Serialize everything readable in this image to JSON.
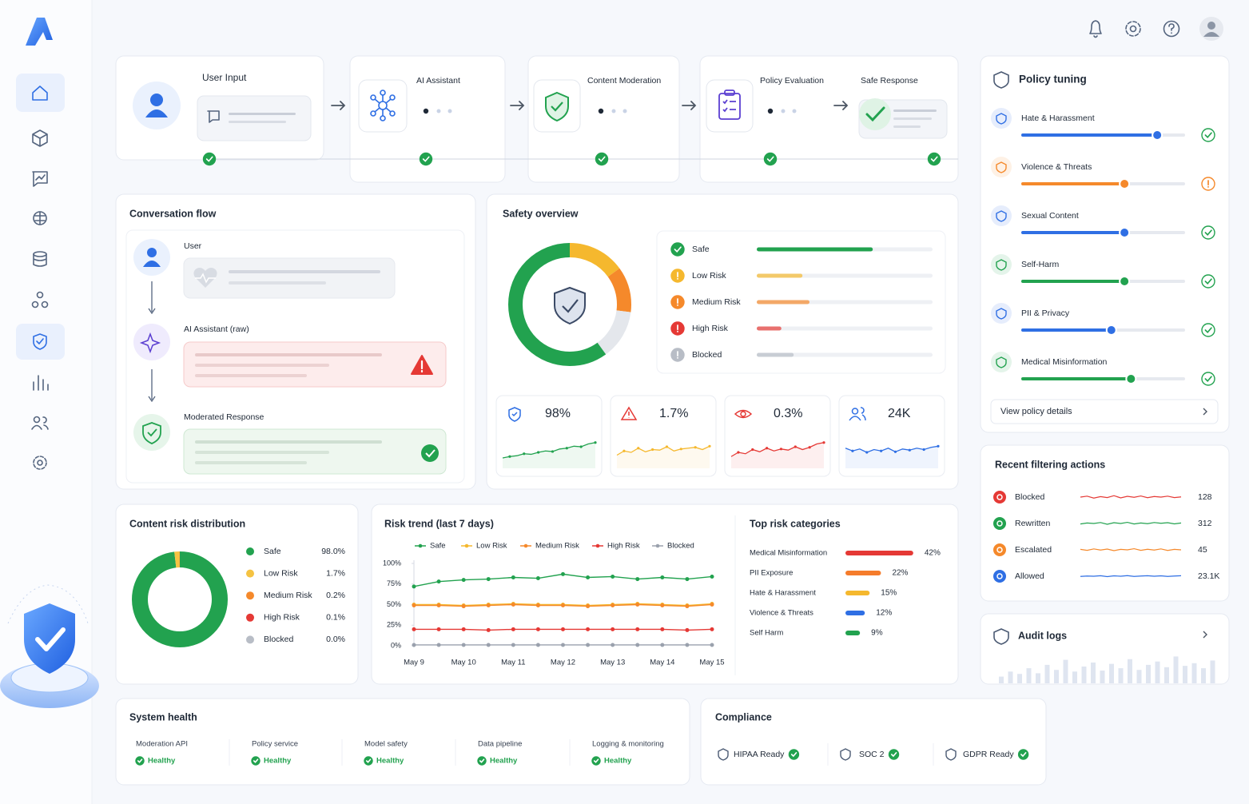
{
  "pipeline": {
    "steps": [
      "User Input",
      "AI Assistant",
      "Content Moderation",
      "Policy Evaluation",
      "Safe Response"
    ]
  },
  "conversation": {
    "title": "Conversation flow",
    "roles": [
      "User",
      "AI Assistant (raw)",
      "Moderated Response"
    ]
  },
  "safety_overview": {
    "title": "Safety overview",
    "ring": [
      {
        "color": "#f5b82e",
        "value": 15
      },
      {
        "color": "#f5892b",
        "value": 12
      },
      {
        "color": "#e4e7ec",
        "value": 13
      },
      {
        "color": "#22a24f",
        "value": 60
      }
    ],
    "levels": [
      {
        "name": "Safe",
        "color": "#22a24f",
        "value": 66
      },
      {
        "name": "Low Risk",
        "color": "#f5b82e",
        "value": 26
      },
      {
        "name": "Medium Risk",
        "color": "#f5892b",
        "value": 30
      },
      {
        "name": "High Risk",
        "color": "#e53935",
        "value": 14
      },
      {
        "name": "Blocked",
        "color": "#b8bdc6",
        "value": 21
      }
    ],
    "kpis": [
      {
        "label": "98%",
        "color": "#22a24f",
        "spark": [
          20,
          25,
          28,
          35,
          33,
          40,
          45,
          43,
          52,
          55,
          62,
          60,
          70,
          75
        ]
      },
      {
        "label": "1.7%",
        "color": "#f5b82e",
        "spark": [
          30,
          45,
          40,
          55,
          42,
          50,
          48,
          60,
          45,
          52,
          55,
          58,
          50,
          62
        ]
      },
      {
        "label": "0.3%",
        "color": "#e53935",
        "spark": [
          25,
          40,
          35,
          50,
          42,
          55,
          45,
          52,
          48,
          60,
          50,
          58,
          70,
          75
        ]
      },
      {
        "label": "24K",
        "color": "#2f6fe4",
        "spark": [
          55,
          45,
          52,
          40,
          50,
          45,
          55,
          42,
          52,
          48,
          55,
          50,
          58,
          62
        ]
      }
    ]
  },
  "risk_distribution": {
    "title": "Content risk distribution",
    "type": "donut",
    "categories": [
      "Safe",
      "Low Risk",
      "Medium Risk",
      "High Risk",
      "Blocked"
    ],
    "values": [
      98,
      1.7,
      0.2,
      0.1,
      0
    ],
    "value_labels": [
      "98.0%",
      "1.7%",
      "0.2%",
      "0.1%",
      "0.0%"
    ],
    "colors": [
      "#22a24f",
      "#f5c342",
      "#f5892b",
      "#e53935",
      "#b8bdc6"
    ]
  },
  "risk_trend": {
    "title": "Risk trend (last 7 days)",
    "type": "line",
    "categories": [
      "May 9",
      null,
      "May 10",
      null,
      "May 11",
      null,
      "May 12",
      null,
      "May 13",
      null,
      "May 14",
      null,
      "May 15"
    ],
    "series": [
      {
        "name": "Safe",
        "color": "#22a24f",
        "values": [
          72,
          78,
          80,
          81,
          83,
          82,
          87,
          83,
          84,
          81,
          83,
          81,
          84
        ]
      },
      {
        "name": "Low Risk",
        "color": "#f5b82e",
        "values": [
          50,
          50,
          49,
          50,
          51,
          50,
          50,
          49,
          50,
          51,
          50,
          49,
          51
        ]
      },
      {
        "name": "Medium Risk",
        "color": "#f5892b",
        "values": [
          49,
          49,
          48,
          49,
          50,
          49,
          49,
          48,
          49,
          50,
          49,
          48,
          50
        ]
      },
      {
        "name": "High Risk",
        "color": "#e53935",
        "values": [
          20,
          20,
          20,
          19,
          20,
          20,
          20,
          20,
          20,
          20,
          20,
          19,
          20
        ]
      },
      {
        "name": "Blocked",
        "color": "#9aa1ad",
        "values": [
          1,
          1,
          1,
          1,
          1,
          1,
          1,
          1,
          1,
          1,
          1,
          1,
          1
        ]
      }
    ],
    "ylim": [
      0,
      100
    ],
    "yticks": [
      {
        "value": 0,
        "label": "0%"
      },
      {
        "value": 25,
        "label": "25%"
      },
      {
        "value": 50,
        "label": "50%"
      },
      {
        "value": 75,
        "label": "75%"
      },
      {
        "value": 100,
        "label": "100%"
      }
    ]
  },
  "top_risks": {
    "title": "Top risk categories",
    "categories": [
      "Medical Misinformation",
      "PII Exposure",
      "Hate & Harassment",
      "Violence & Threats",
      "Self Harm"
    ],
    "values": [
      42,
      22,
      15,
      12,
      9
    ],
    "value_labels": [
      "42%",
      "22%",
      "15%",
      "12%",
      "9%"
    ],
    "colors": [
      "#e53935",
      "#f57c2b",
      "#f5b82e",
      "#2f6fe4",
      "#22a24f"
    ]
  },
  "policy_tuning": {
    "title": "Policy tuning",
    "items": [
      {
        "name": "Hate & Harassment",
        "value": 83,
        "color": "#2f6fe4",
        "status": "ok"
      },
      {
        "name": "Violence & Threats",
        "value": 63,
        "color": "#f5892b",
        "status": "warn"
      },
      {
        "name": "Sexual Content",
        "value": 63,
        "color": "#2f6fe4",
        "status": "ok"
      },
      {
        "name": "Self-Harm",
        "value": 63,
        "color": "#22a24f",
        "status": "ok"
      },
      {
        "name": "PII & Privacy",
        "value": 55,
        "color": "#2f6fe4",
        "status": "ok"
      },
      {
        "name": "Medical Misinformation",
        "value": 67,
        "color": "#22a24f",
        "status": "ok"
      }
    ],
    "link": "View policy details"
  },
  "recent_actions": {
    "title": "Recent filtering actions",
    "items": [
      {
        "name": "Blocked",
        "color": "#e53935",
        "value": 128,
        "spark": [
          50,
          60,
          40,
          55,
          45,
          65,
          42,
          58,
          48,
          62,
          44,
          56,
          50,
          60,
          45,
          52
        ]
      },
      {
        "name": "Rewritten",
        "color": "#22a24f",
        "value": 312,
        "spark": [
          45,
          55,
          50,
          60,
          42,
          58,
          50,
          62,
          45,
          55,
          48,
          60,
          52,
          58,
          46,
          55
        ]
      },
      {
        "name": "Escalated",
        "color": "#f5892b",
        "value": 45,
        "spark": [
          55,
          45,
          60,
          48,
          58,
          42,
          55,
          50,
          62,
          45,
          56,
          48,
          60,
          44,
          55,
          50
        ]
      },
      {
        "name": "Allowed",
        "color": "#2f6fe4",
        "value": 23100,
        "value_label": "23.1K",
        "spark": [
          48,
          52,
          50,
          55,
          46,
          54,
          50,
          56,
          48,
          52,
          55,
          50,
          54,
          48,
          52,
          55
        ]
      }
    ]
  },
  "audit_logs": {
    "title": "Audit logs",
    "bars": [
      20,
      35,
      28,
      45,
      30,
      55,
      40,
      70,
      35,
      50,
      62,
      38,
      58,
      45,
      72,
      40,
      55,
      65,
      48,
      80,
      52,
      60,
      45,
      68
    ]
  },
  "system_health": {
    "title": "System health",
    "services": [
      {
        "name": "Moderation API",
        "status": "Healthy"
      },
      {
        "name": "Policy service",
        "status": "Healthy"
      },
      {
        "name": "Model safety",
        "status": "Healthy"
      },
      {
        "name": "Data pipeline",
        "status": "Healthy"
      },
      {
        "name": "Logging & monitoring",
        "status": "Healthy"
      }
    ]
  },
  "compliance": {
    "title": "Compliance",
    "items": [
      "HIPAA Ready",
      "SOC 2",
      "GDPR Ready"
    ]
  }
}
